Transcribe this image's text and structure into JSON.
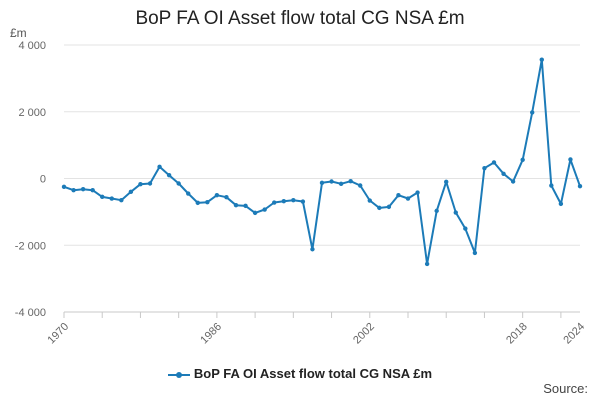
{
  "chart_data": {
    "type": "line",
    "title": "BoP FA OI Asset flow total CG NSA £m",
    "ylabel": "£m",
    "xlabel": "",
    "ylim": [
      -4000,
      4000
    ],
    "yticks": [
      {
        "value": -4000,
        "label": "-4 000"
      },
      {
        "value": -2000,
        "label": "-2 000"
      },
      {
        "value": 0,
        "label": "0"
      },
      {
        "value": 2000,
        "label": "2 000"
      },
      {
        "value": 4000,
        "label": "4 000"
      }
    ],
    "xlim": [
      1970,
      2024
    ],
    "xtick_labels": [
      "1970",
      "1986",
      "2002",
      "2018",
      "2024"
    ],
    "grid": "horizontal",
    "legend_position": "bottom",
    "color": "#1c7bb8",
    "series": [
      {
        "name": "BoP FA OI Asset flow total CG NSA £m",
        "x": [
          1970,
          1971,
          1972,
          1973,
          1974,
          1975,
          1976,
          1977,
          1978,
          1979,
          1980,
          1981,
          1982,
          1983,
          1984,
          1985,
          1986,
          1987,
          1988,
          1989,
          1990,
          1991,
          1992,
          1993,
          1994,
          1995,
          1996,
          1997,
          1998,
          1999,
          2000,
          2001,
          2002,
          2003,
          2004,
          2005,
          2006,
          2007,
          2008,
          2009,
          2010,
          2011,
          2012,
          2013,
          2014,
          2015,
          2016,
          2017,
          2018,
          2019,
          2020,
          2021,
          2022,
          2023,
          2024
        ],
        "values": [
          -250,
          -350,
          -320,
          -350,
          -550,
          -600,
          -650,
          -400,
          -170,
          -150,
          350,
          100,
          -150,
          -450,
          -730,
          -710,
          -500,
          -560,
          -800,
          -820,
          -1030,
          -930,
          -720,
          -680,
          -650,
          -690,
          -2120,
          -130,
          -90,
          -160,
          -80,
          -210,
          -660,
          -880,
          -850,
          -500,
          -600,
          -420,
          -2560,
          -970,
          -100,
          -1020,
          -1500,
          -2230,
          310,
          480,
          140,
          -90,
          560,
          1980,
          3560,
          -210,
          -760,
          570,
          -230
        ]
      }
    ]
  },
  "source_label": "Source:"
}
